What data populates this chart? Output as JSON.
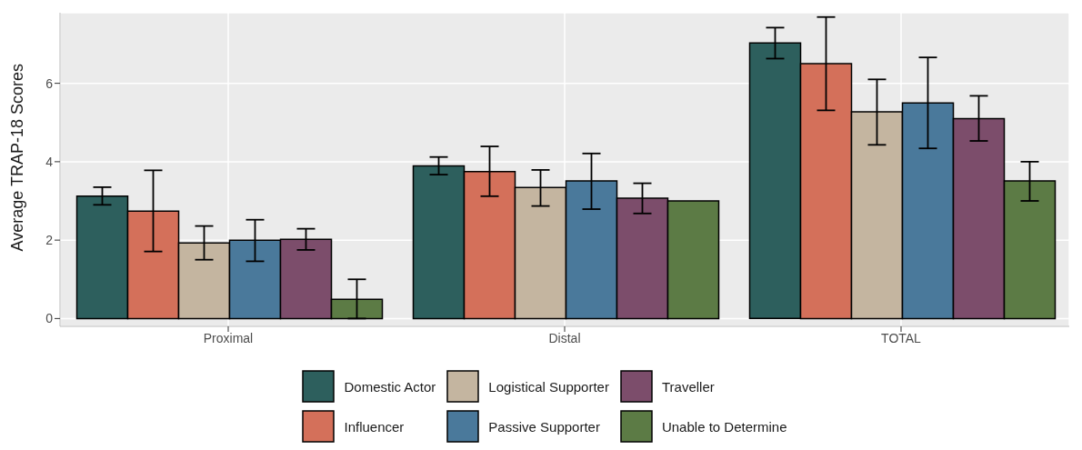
{
  "chart_data": {
    "type": "bar",
    "ylabel": "Average TRAP-18 Scores",
    "categories": [
      "Proximal",
      "Distal",
      "TOTAL"
    ],
    "series": [
      {
        "name": "Domestic Actor",
        "color": "#2d5f5d",
        "values": [
          3.12,
          3.89,
          7.03
        ],
        "errors": [
          [
            2.9,
            3.35
          ],
          [
            3.67,
            4.12
          ],
          [
            6.63,
            7.42
          ]
        ]
      },
      {
        "name": "Influencer",
        "color": "#d4705a",
        "values": [
          2.74,
          3.75,
          6.5
        ],
        "errors": [
          [
            1.71,
            3.78
          ],
          [
            3.12,
            4.39
          ],
          [
            5.31,
            7.69
          ]
        ]
      },
      {
        "name": "Logistical Supporter",
        "color": "#c4b5a0",
        "values": [
          1.93,
          3.34,
          5.27
        ],
        "errors": [
          [
            1.5,
            2.36
          ],
          [
            2.87,
            3.79
          ],
          [
            4.43,
            6.1
          ]
        ]
      },
      {
        "name": "Passive Supporter",
        "color": "#4a799b",
        "values": [
          2.0,
          3.51,
          5.5
        ],
        "errors": [
          [
            1.46,
            2.52
          ],
          [
            2.79,
            4.21
          ],
          [
            4.34,
            6.66
          ]
        ]
      },
      {
        "name": "Traveller",
        "color": "#7c4d6b",
        "values": [
          2.02,
          3.07,
          5.1
        ],
        "errors": [
          [
            1.75,
            2.29
          ],
          [
            2.68,
            3.45
          ],
          [
            4.53,
            5.68
          ]
        ]
      },
      {
        "name": "Unable to Determine",
        "color": "#5c7b45",
        "values": [
          0.49,
          3.0,
          3.51
        ],
        "errors": [
          [
            0,
            1.0
          ],
          null,
          [
            3.0,
            4.0
          ]
        ]
      }
    ],
    "ylim": [
      -0.2,
      7.8
    ],
    "yticks": [
      0,
      2,
      4,
      6
    ],
    "grid": true,
    "legend": "bottom"
  }
}
